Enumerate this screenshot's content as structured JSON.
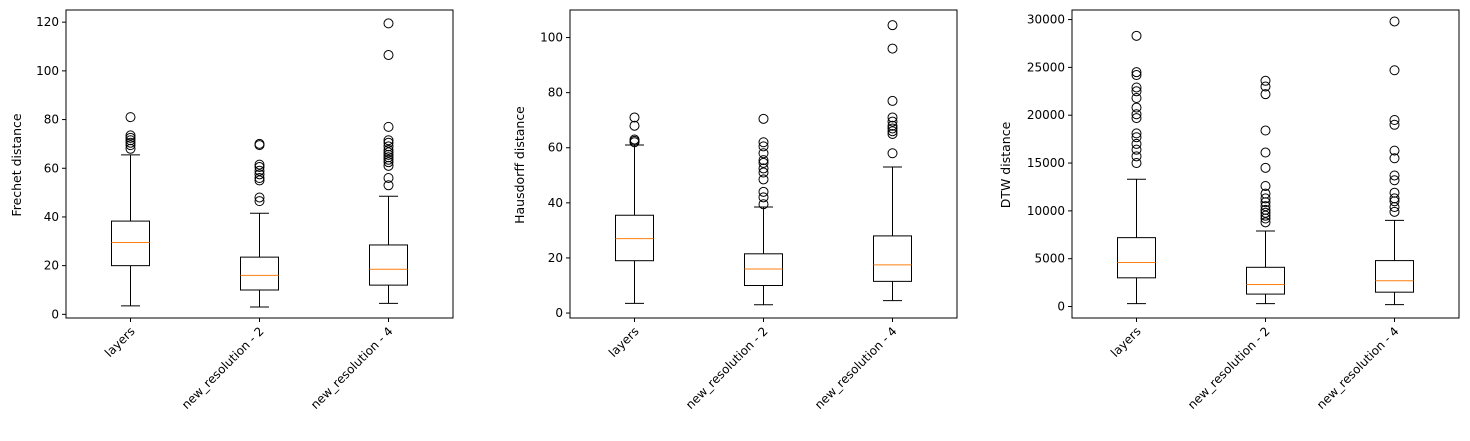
{
  "chart_data": [
    {
      "type": "box",
      "ylabel": "Frechet distance",
      "categories": [
        "layers",
        "new_resolution - 2",
        "new_resolution - 4"
      ],
      "ylim": [
        -1.5,
        125
      ],
      "yticks": [
        0,
        20,
        40,
        60,
        80,
        100,
        120
      ],
      "boxes": [
        {
          "whisker_low": 3.5,
          "q1": 20,
          "median": 29.5,
          "q3": 38.3,
          "whisker_high": 65.5,
          "outliers": [
            68,
            69.5,
            70.5,
            71.5,
            72.5,
            73.5,
            81
          ]
        },
        {
          "whisker_low": 3,
          "q1": 10,
          "median": 16,
          "q3": 23.5,
          "whisker_high": 41.5,
          "outliers": [
            46.5,
            48,
            55,
            56,
            57.5,
            59,
            60.5,
            61.5,
            69.5,
            70
          ]
        },
        {
          "whisker_low": 4.5,
          "q1": 12,
          "median": 18.5,
          "q3": 28.5,
          "whisker_high": 48.5,
          "outliers": [
            53,
            56,
            61,
            62.5,
            63.5,
            64.5,
            65.5,
            66.5,
            67.5,
            69,
            70.5,
            71.5,
            77,
            106.5,
            119.5
          ]
        }
      ]
    },
    {
      "type": "box",
      "ylabel": "Hausdorff distance",
      "categories": [
        "layers",
        "new_resolution - 2",
        "new_resolution - 4"
      ],
      "ylim": [
        -1.8,
        110
      ],
      "yticks": [
        0,
        20,
        40,
        60,
        80,
        100
      ],
      "boxes": [
        {
          "whisker_low": 3.5,
          "q1": 19,
          "median": 27,
          "q3": 35.5,
          "whisker_high": 61,
          "outliers": [
            62,
            62.5,
            63,
            68,
            71
          ]
        },
        {
          "whisker_low": 3,
          "q1": 10,
          "median": 16,
          "q3": 21.5,
          "whisker_high": 38.5,
          "outliers": [
            39.5,
            42,
            44,
            48.5,
            51,
            52.5,
            54.5,
            55.5,
            58,
            60.5,
            62,
            70.5
          ]
        },
        {
          "whisker_low": 4.5,
          "q1": 11.5,
          "median": 17.5,
          "q3": 28,
          "whisker_high": 53,
          "outliers": [
            58,
            65,
            66,
            67,
            68,
            69.5,
            71,
            77,
            96,
            104.5
          ]
        }
      ]
    },
    {
      "type": "box",
      "ylabel": "DTW distance",
      "categories": [
        "layers",
        "new_resolution - 2",
        "new_resolution - 4"
      ],
      "ylim": [
        -1200,
        31000
      ],
      "yticks": [
        0,
        5000,
        10000,
        15000,
        20000,
        25000,
        30000
      ],
      "boxes": [
        {
          "whisker_low": 300,
          "q1": 3000,
          "median": 4600,
          "q3": 7200,
          "whisker_high": 13300,
          "outliers": [
            15000,
            15700,
            16400,
            17000,
            17700,
            18100,
            19700,
            20100,
            20800,
            21800,
            22500,
            22900,
            24200,
            24500,
            28300
          ]
        },
        {
          "whisker_low": 300,
          "q1": 1300,
          "median": 2300,
          "q3": 4100,
          "whisker_high": 7900,
          "outliers": [
            8800,
            9200,
            9500,
            9800,
            10100,
            10500,
            10900,
            11300,
            11800,
            12600,
            14500,
            16100,
            18400,
            22200,
            23000,
            23600
          ]
        },
        {
          "whisker_low": 200,
          "q1": 1500,
          "median": 2700,
          "q3": 4800,
          "whisker_high": 9000,
          "outliers": [
            9900,
            10400,
            11000,
            11300,
            11900,
            13200,
            13700,
            15500,
            16300,
            19000,
            19500,
            24700,
            29800
          ]
        }
      ]
    }
  ],
  "colors": {
    "box": "#000000",
    "median": "#ff7f0e",
    "background": "#ffffff"
  }
}
